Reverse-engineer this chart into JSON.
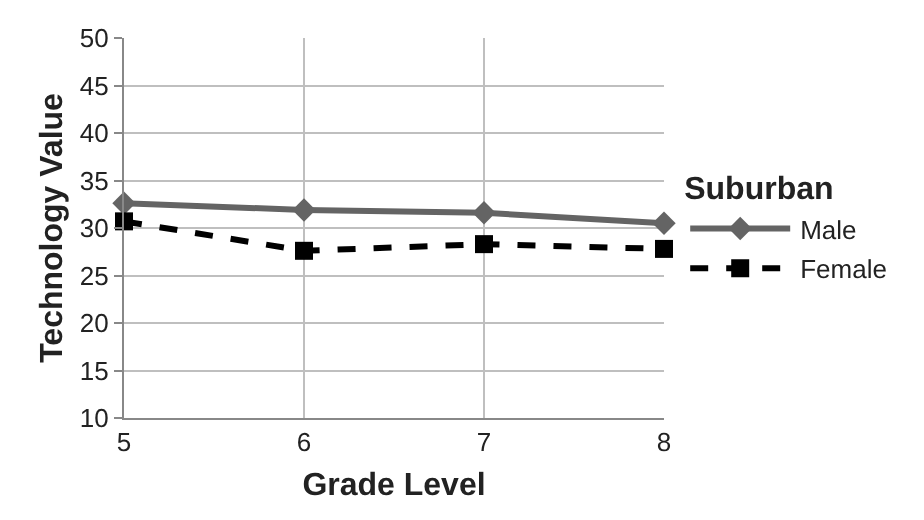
{
  "chart_data": {
    "type": "line",
    "xlabel": "Grade Level",
    "ylabel": "Technology Value",
    "legend_title": "Suburban",
    "x": [
      5,
      6,
      7,
      8
    ],
    "xlim": [
      5,
      8
    ],
    "xticks": [
      5,
      6,
      7,
      8
    ],
    "ylim": [
      10,
      50
    ],
    "yticks": [
      10,
      15,
      20,
      25,
      30,
      35,
      40,
      45,
      50
    ],
    "series": [
      {
        "name": "Male",
        "color": "#646464",
        "values": [
          32.6,
          31.9,
          31.6,
          30.5
        ],
        "marker": "diamond",
        "line_style": "solid"
      },
      {
        "name": "Female",
        "color": "#000000",
        "values": [
          30.7,
          27.6,
          28.3,
          27.8
        ],
        "marker": "square",
        "line_style": "dashed"
      }
    ],
    "grid": true,
    "legend": "right"
  }
}
